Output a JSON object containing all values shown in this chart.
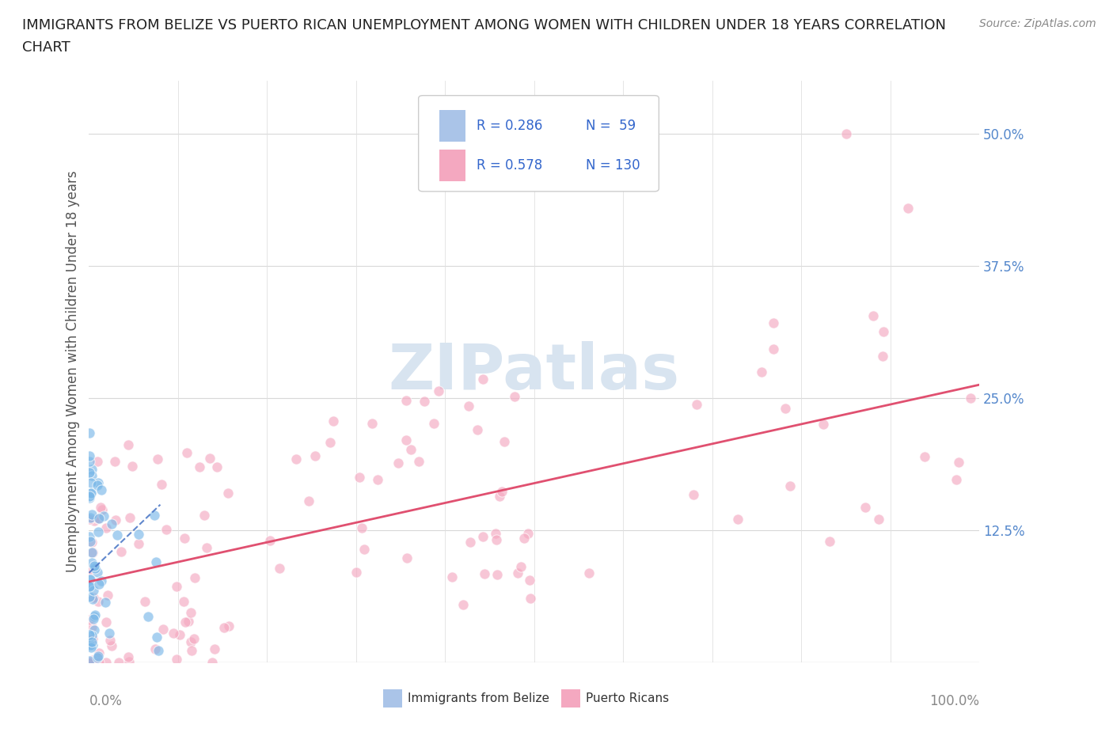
{
  "title_line1": "IMMIGRANTS FROM BELIZE VS PUERTO RICAN UNEMPLOYMENT AMONG WOMEN WITH CHILDREN UNDER 18 YEARS CORRELATION",
  "title_line2": "CHART",
  "source_text": "Source: ZipAtlas.com",
  "xlabel_start": "0.0%",
  "xlabel_end": "100.0%",
  "ylabel": "Unemployment Among Women with Children Under 18 years",
  "y_ticks": [
    0.0,
    0.125,
    0.25,
    0.375,
    0.5
  ],
  "y_tick_labels": [
    "",
    "12.5%",
    "25.0%",
    "37.5%",
    "50.0%"
  ],
  "x_range": [
    0,
    1.0
  ],
  "y_range": [
    0,
    0.55
  ],
  "legend_R1": "R = 0.286",
  "legend_N1": "N =  59",
  "legend_R2": "R = 0.578",
  "legend_N2": "N = 130",
  "legend_color1": "#aac4e8",
  "legend_color2": "#f4a8c0",
  "scatter_color1": "#7ab8e8",
  "scatter_color2": "#f4a8c0",
  "trend_color1": "#4472c4",
  "trend_color2": "#e05070",
  "watermark_color": "#d8e4f0",
  "background_color": "#ffffff"
}
